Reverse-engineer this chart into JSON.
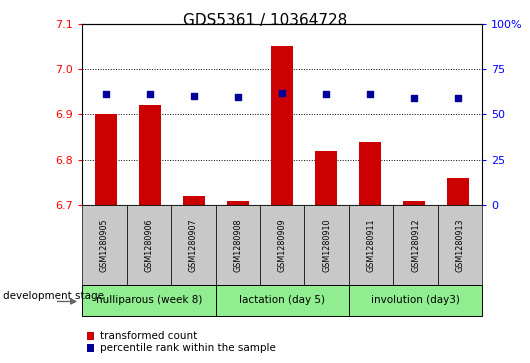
{
  "title": "GDS5361 / 10364728",
  "samples": [
    "GSM1280905",
    "GSM1280906",
    "GSM1280907",
    "GSM1280908",
    "GSM1280909",
    "GSM1280910",
    "GSM1280911",
    "GSM1280912",
    "GSM1280913"
  ],
  "bar_values": [
    6.9,
    6.92,
    6.72,
    6.71,
    7.05,
    6.82,
    6.84,
    6.71,
    6.76
  ],
  "percentile_values": [
    6.945,
    6.945,
    6.94,
    6.938,
    6.948,
    6.945,
    6.945,
    6.937,
    6.937
  ],
  "ylim_left": [
    6.7,
    7.1
  ],
  "ylim_right": [
    0,
    100
  ],
  "yticks_left": [
    6.7,
    6.8,
    6.9,
    7.0,
    7.1
  ],
  "yticks_right": [
    0,
    25,
    50,
    75,
    100
  ],
  "ytick_labels_right": [
    "0",
    "25",
    "50",
    "75",
    "100%"
  ],
  "bar_color": "#CC0000",
  "percentile_color": "#000099",
  "groups": [
    {
      "label": "nulliparous (week 8)",
      "start": 0,
      "end": 3
    },
    {
      "label": "lactation (day 5)",
      "start": 3,
      "end": 6
    },
    {
      "label": "involution (day3)",
      "start": 6,
      "end": 9
    }
  ],
  "group_bg_color": "#90EE90",
  "sample_bg_color": "#C8C8C8",
  "legend_bar_label": "transformed count",
  "legend_percentile_label": "percentile rank within the sample",
  "dev_stage_label": "development stage",
  "title_fontsize": 11,
  "axis_fontsize": 8,
  "label_fontsize": 7.5,
  "legend_fontsize": 7.5
}
